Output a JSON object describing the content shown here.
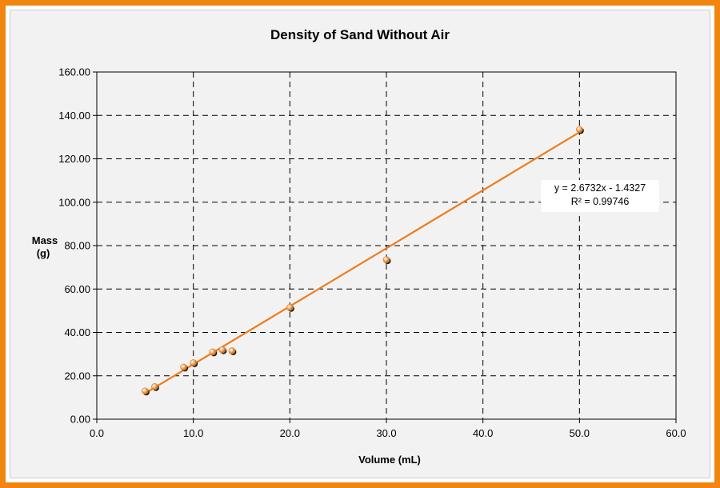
{
  "chart_data": {
    "type": "scatter",
    "title": "Density of Sand Without Air",
    "xlabel": "Volume (mL)",
    "ylabel_line1": "Mass",
    "ylabel_line2": "(g)",
    "xlim": [
      0,
      60
    ],
    "ylim": [
      0,
      160
    ],
    "x_ticks": [
      "0.0",
      "10.0",
      "20.0",
      "30.0",
      "40.0",
      "50.0",
      "60.0"
    ],
    "y_ticks": [
      "0.00",
      "20.00",
      "40.00",
      "60.00",
      "80.00",
      "100.00",
      "120.00",
      "140.00",
      "160.00"
    ],
    "grid": true,
    "series": [
      {
        "color": "#f07a1a",
        "x": [
          5,
          6,
          9,
          10,
          12,
          13,
          14,
          20,
          30,
          50
        ],
        "y": [
          13,
          15,
          24,
          26,
          31,
          32,
          31.5,
          51.5,
          73.5,
          133.5
        ]
      }
    ],
    "trendline": {
      "slope": 2.6732,
      "intercept": -1.4327,
      "x_range": [
        5,
        50
      ],
      "color": "#f07a1a",
      "equation": "y = 2.6732x - 1.4327",
      "r_squared": "R² = 0.99746"
    }
  }
}
